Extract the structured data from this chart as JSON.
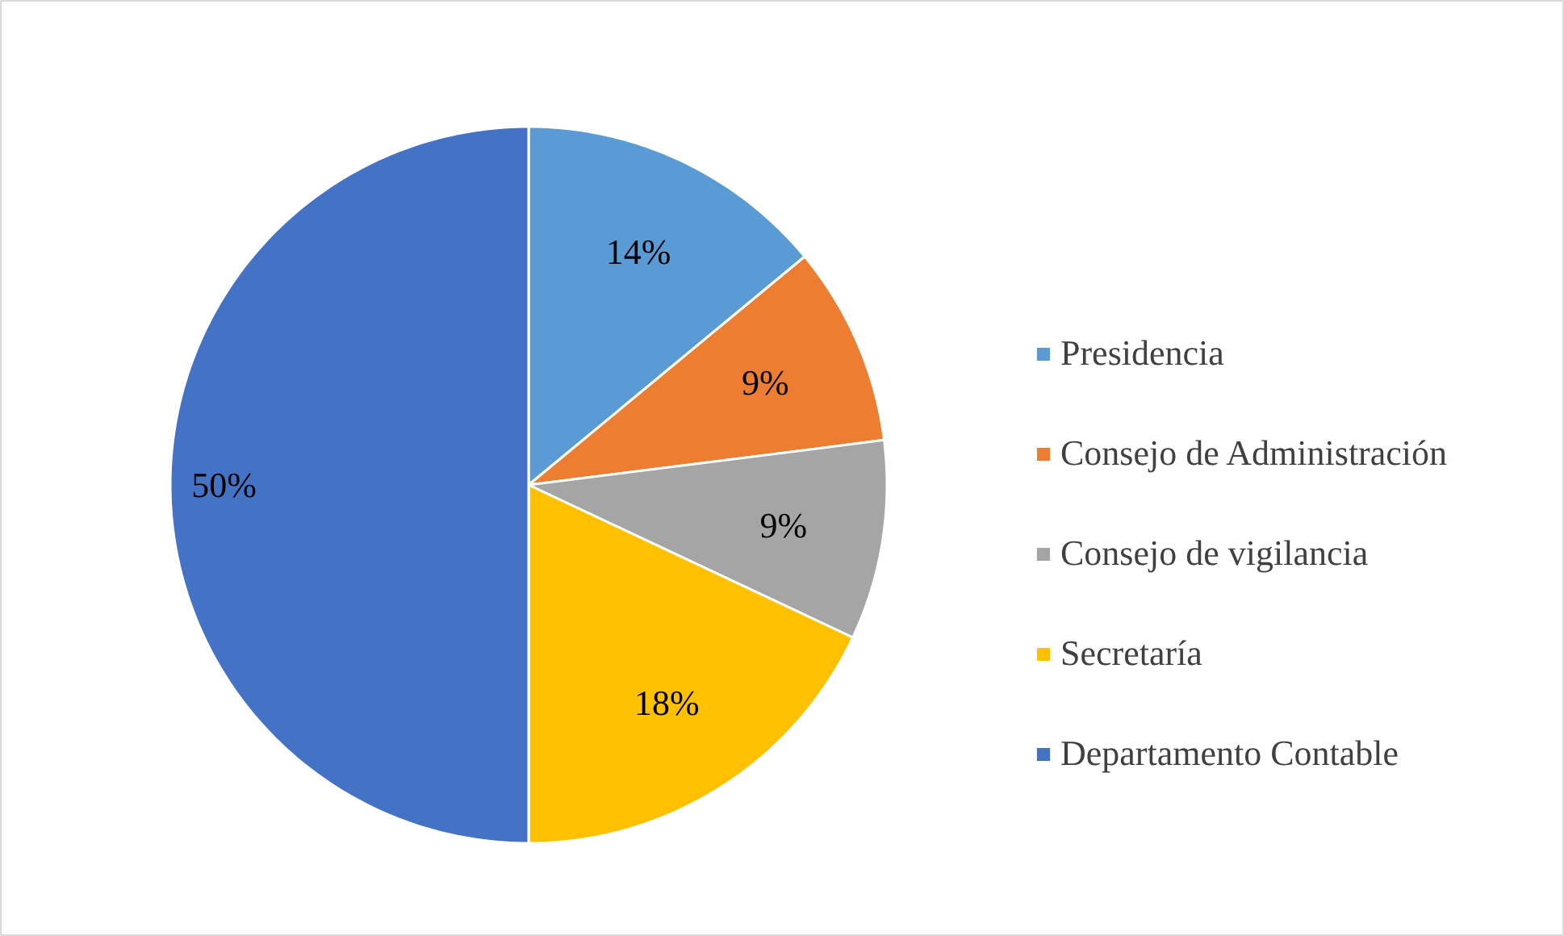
{
  "chart_data": {
    "type": "pie",
    "categories": [
      "Presidencia",
      "Consejo de Administración",
      "Consejo de vigilancia",
      "Secretaría",
      "Departamento Contable"
    ],
    "values": [
      14,
      9,
      9,
      18,
      50
    ],
    "value_labels": [
      "14%",
      "9%",
      "9%",
      "18%",
      "50%"
    ],
    "colors": [
      "#5b9bd5",
      "#ed7d31",
      "#a5a5a5",
      "#ffc000",
      "#4472c4"
    ],
    "legend": "right"
  }
}
